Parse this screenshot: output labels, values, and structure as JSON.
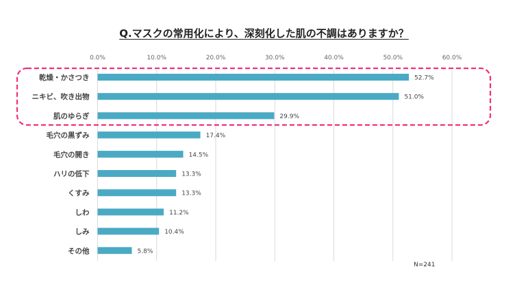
{
  "chart_data": {
    "type": "bar",
    "orientation": "horizontal",
    "title": "Q.マスクの常用化により、深刻化した肌の不調はありますか？",
    "categories": [
      "乾燥・かさつき",
      "ニキビ、吹き出物",
      "肌のゆらぎ",
      "毛穴の黒ずみ",
      "毛穴の開き",
      "ハリの低下",
      "くすみ",
      "しわ",
      "しみ",
      "その他"
    ],
    "values": [
      52.7,
      51.0,
      29.9,
      17.4,
      14.5,
      13.3,
      13.3,
      11.2,
      10.4,
      5.8
    ],
    "value_labels": [
      "52.7%",
      "51.0%",
      "29.9%",
      "17.4%",
      "14.5%",
      "13.3%",
      "13.3%",
      "11.2%",
      "10.4%",
      "5.8%"
    ],
    "xlim": [
      0,
      60
    ],
    "ticks": [
      "0.0%",
      "10.0%",
      "20.0%",
      "30.0%",
      "40.0%",
      "50.0%",
      "60.0%"
    ],
    "tick_values": [
      0,
      10,
      20,
      30,
      40,
      50,
      60
    ],
    "xaxis_position": "top",
    "grid": true,
    "highlight": {
      "categories": [
        "乾燥・かさつき",
        "ニキビ、吹き出物",
        "肌のゆらぎ"
      ],
      "style": "dashed rounded box",
      "color": "#f0307a"
    },
    "bar_color": "#4aaac4",
    "note": "N=241"
  }
}
